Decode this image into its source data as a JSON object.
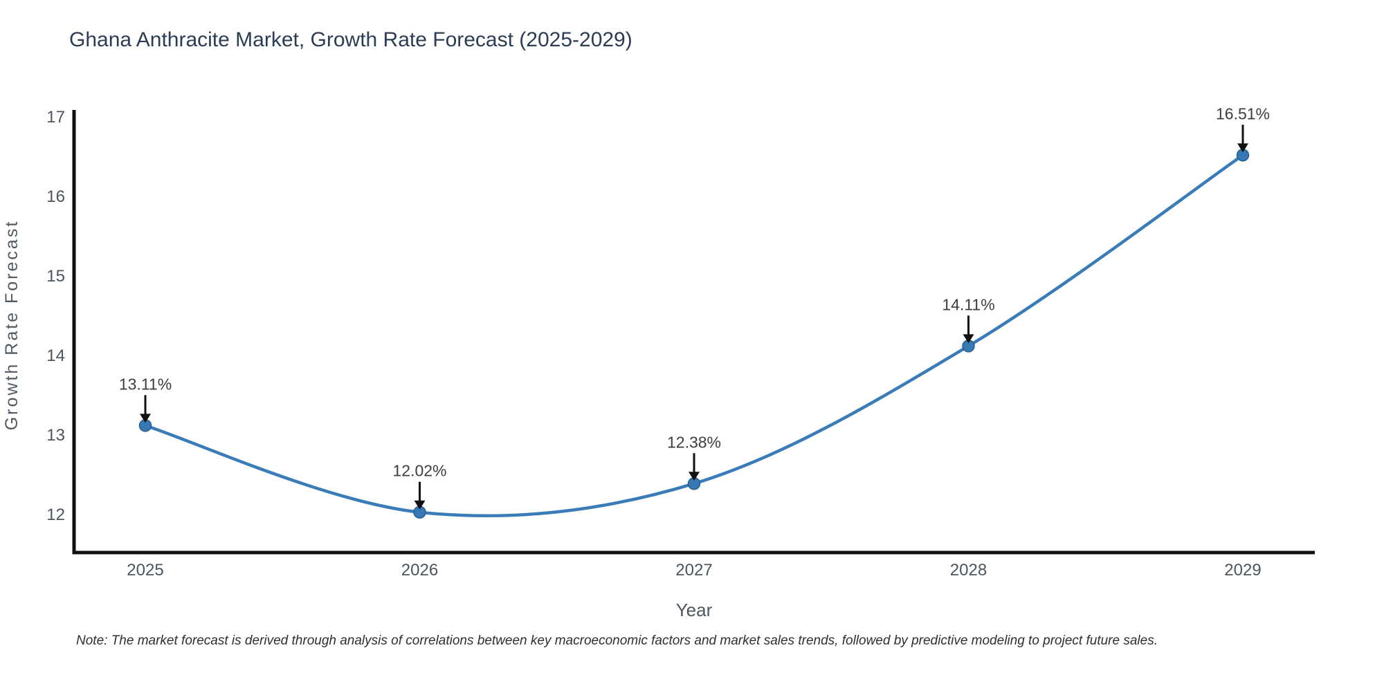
{
  "title": "Ghana Anthracite Market, Growth Rate Forecast (2025-2029)",
  "note": "Note: The market forecast is derived through analysis of correlations between key macroeconomic factors and market sales trends, followed by predictive modeling to project future sales.",
  "chart_data": {
    "type": "line",
    "title": "Ghana Anthracite Market, Growth Rate Forecast (2025-2029)",
    "xlabel": "Year",
    "ylabel": "Growth Rate Forecast",
    "categories": [
      "2025",
      "2026",
      "2027",
      "2028",
      "2029"
    ],
    "series": [
      {
        "name": "Growth Rate Forecast",
        "values": [
          13.11,
          12.02,
          12.38,
          14.11,
          16.51
        ]
      }
    ],
    "point_labels": [
      "13.11%",
      "12.02%",
      "12.38%",
      "14.11%",
      "16.51%"
    ],
    "yticks": [
      12,
      13,
      14,
      15,
      16,
      17
    ],
    "ylim": [
      11.5,
      17.1
    ],
    "grid": false,
    "legend_position": "none",
    "line_color": "#3a7cb8",
    "marker_color": "#3679b5",
    "marker_edge_color": "#2b5f8e",
    "annotation_arrow_color": "#111111",
    "axis_color": "#111111"
  }
}
